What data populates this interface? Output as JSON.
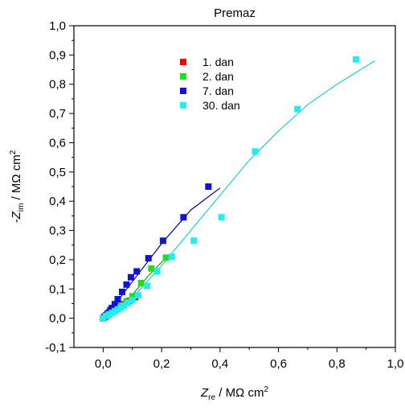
{
  "chart_data": {
    "type": "scatter",
    "title": "Premaz",
    "xlabel": {
      "main": "Z",
      "sub": "re",
      "rest": " / MΩ cm",
      "sup": "2"
    },
    "ylabel": {
      "main": "-Z",
      "sub": "im",
      "rest": " / MΩ cm",
      "sup": "2"
    },
    "xlim": [
      -0.1,
      1.0
    ],
    "ylim": [
      -0.1,
      1.0
    ],
    "xticks": [
      0.0,
      0.2,
      0.4,
      0.6,
      0.8,
      1.0
    ],
    "xtick_labels": [
      "0,0",
      "0,2",
      "0,4",
      "0,6",
      "0,8",
      "1,0"
    ],
    "yticks": [
      -0.1,
      0.0,
      0.1,
      0.2,
      0.3,
      0.4,
      0.5,
      0.6,
      0.7,
      0.8,
      0.9,
      1.0
    ],
    "ytick_labels": [
      "-0,1",
      "0,0",
      "0,1",
      "0,2",
      "0,3",
      "0,4",
      "0,5",
      "0,6",
      "0,7",
      "0,8",
      "0,9",
      "1,0"
    ],
    "grid": false,
    "legend_position": "top-center",
    "series": [
      {
        "name": "1. dan",
        "color": "#ff0000",
        "line_color": "#d40000",
        "x": [
          0.0,
          0.005,
          0.01,
          0.015,
          0.02,
          0.03,
          0.04,
          0.05,
          0.07,
          0.09,
          0.11
        ],
        "y": [
          0.0,
          0.004,
          0.008,
          0.012,
          0.016,
          0.024,
          0.03,
          0.036,
          0.048,
          0.06,
          0.072
        ],
        "fit_x": [
          0.0,
          0.04,
          0.08,
          0.11
        ],
        "fit_y": [
          0.0,
          0.028,
          0.054,
          0.072
        ]
      },
      {
        "name": "2. dan",
        "color": "#22dd22",
        "line_color": "#119911",
        "x": [
          0.0,
          0.005,
          0.01,
          0.015,
          0.02,
          0.03,
          0.04,
          0.05,
          0.06,
          0.08,
          0.1,
          0.13,
          0.165,
          0.215
        ],
        "y": [
          0.0,
          0.003,
          0.007,
          0.011,
          0.014,
          0.021,
          0.029,
          0.036,
          0.043,
          0.058,
          0.075,
          0.12,
          0.17,
          0.207
        ],
        "fit_x": [
          0.0,
          0.05,
          0.1,
          0.15,
          0.215
        ],
        "fit_y": [
          0.0,
          0.036,
          0.08,
          0.14,
          0.207
        ]
      },
      {
        "name": "7. dan",
        "color": "#1111dd",
        "line_color": "#000088",
        "x": [
          0.0,
          0.005,
          0.01,
          0.015,
          0.02,
          0.025,
          0.03,
          0.04,
          0.05,
          0.065,
          0.08,
          0.095,
          0.115,
          0.155,
          0.205,
          0.275,
          0.36
        ],
        "y": [
          0.0,
          0.005,
          0.01,
          0.015,
          0.02,
          0.028,
          0.035,
          0.048,
          0.065,
          0.09,
          0.115,
          0.14,
          0.16,
          0.205,
          0.265,
          0.345,
          0.45
        ],
        "fit_x": [
          0.0,
          0.05,
          0.1,
          0.2,
          0.3,
          0.4
        ],
        "fit_y": [
          0.0,
          0.06,
          0.125,
          0.255,
          0.37,
          0.445
        ]
      },
      {
        "name": "30. dan",
        "color": "#22eeee",
        "line_color": "#22cccc",
        "x": [
          0.0,
          0.01,
          0.02,
          0.03,
          0.04,
          0.05,
          0.06,
          0.07,
          0.085,
          0.1,
          0.12,
          0.15,
          0.185,
          0.235,
          0.31,
          0.405,
          0.52,
          0.665,
          0.865
        ],
        "y": [
          0.0,
          0.008,
          0.013,
          0.018,
          0.024,
          0.03,
          0.036,
          0.043,
          0.052,
          0.062,
          0.078,
          0.11,
          0.16,
          0.21,
          0.265,
          0.345,
          0.57,
          0.715,
          0.885
        ],
        "fit_x": [
          0.0,
          0.1,
          0.2,
          0.3,
          0.4,
          0.5,
          0.6,
          0.7,
          0.8,
          0.93
        ],
        "fit_y": [
          0.0,
          0.07,
          0.18,
          0.3,
          0.42,
          0.54,
          0.64,
          0.73,
          0.8,
          0.88
        ]
      }
    ]
  }
}
